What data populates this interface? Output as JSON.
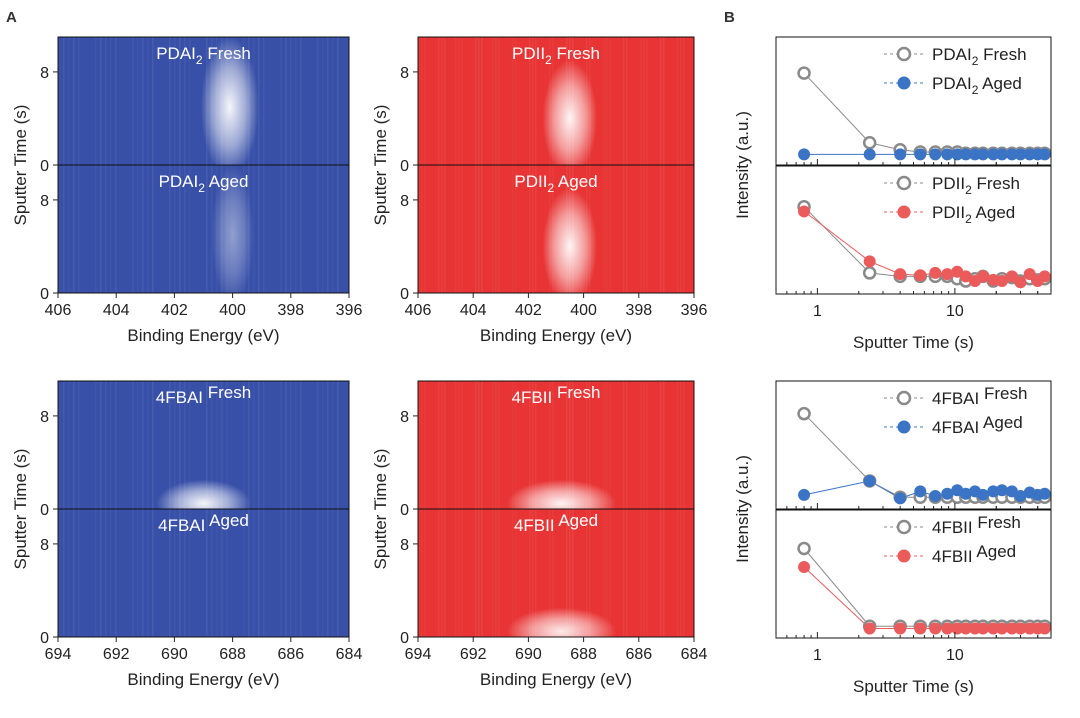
{
  "panel_letters": {
    "a": "A",
    "b": "B"
  },
  "chart_data": [
    {
      "type": "heatmap",
      "group": "PDAI2",
      "colormap": "blue",
      "xlim": [
        406,
        396
      ],
      "ylim": [
        0,
        11
      ],
      "xticks": [
        406,
        404,
        402,
        400,
        398,
        396
      ],
      "yticks": [
        0,
        8
      ],
      "xlabel": "Binding Energy (eV)",
      "ylabel": "Sputter Time (s)",
      "panels": [
        {
          "name": "PDAI",
          "sub": "2",
          "suffix": " Fresh",
          "peak": {
            "center": 400.1,
            "width": 0.55,
            "tmin": 0,
            "tmax": 10,
            "intensity": 0.95
          }
        },
        {
          "name": "PDAI",
          "sub": "2",
          "suffix": " Aged",
          "peak": {
            "center": 400.0,
            "width": 0.4,
            "tmin": 0,
            "tmax": 10,
            "intensity": 0.45
          }
        }
      ]
    },
    {
      "type": "heatmap",
      "group": "PDII2",
      "colormap": "red",
      "xlim": [
        406,
        396
      ],
      "ylim": [
        0,
        11
      ],
      "xticks": [
        406,
        404,
        402,
        400,
        398,
        396
      ],
      "yticks": [
        0,
        8
      ],
      "xlabel": "Binding Energy (eV)",
      "ylabel": "Sputter Time (s)",
      "panels": [
        {
          "name": "PDII",
          "sub": "2",
          "suffix": " Fresh",
          "peak": {
            "center": 400.5,
            "width": 0.55,
            "tmin": 0,
            "tmax": 8,
            "intensity": 0.95
          }
        },
        {
          "name": "PDII",
          "sub": "2",
          "suffix": " Aged",
          "peak": {
            "center": 400.5,
            "width": 0.55,
            "tmin": 0,
            "tmax": 8,
            "intensity": 0.95
          }
        }
      ]
    },
    {
      "type": "heatmap",
      "group": "4FBAI",
      "colormap": "blue",
      "xlim": [
        694,
        684
      ],
      "ylim": [
        0,
        11
      ],
      "xticks": [
        694,
        692,
        690,
        688,
        686,
        684
      ],
      "yticks": [
        0,
        8
      ],
      "xlabel": "Binding Energy (eV)",
      "ylabel": "Sputter Time (s)",
      "panels": [
        {
          "name": "4FBAI",
          "sub": "",
          "suffix": " Fresh",
          "peak": {
            "center": 689.0,
            "width": 0.9,
            "tmin": 0,
            "tmax": 2,
            "intensity": 0.95
          }
        },
        {
          "name": "4FBAI",
          "sub": "",
          "suffix": " Aged",
          "peak": null
        }
      ]
    },
    {
      "type": "heatmap",
      "group": "4FBII",
      "colormap": "red",
      "xlim": [
        694,
        684
      ],
      "ylim": [
        0,
        11
      ],
      "xticks": [
        694,
        692,
        690,
        688,
        686,
        684
      ],
      "yticks": [
        0,
        8
      ],
      "xlabel": "Binding Energy (eV)",
      "ylabel": "Sputter Time (s)",
      "panels": [
        {
          "name": "4FBII",
          "sub": "",
          "suffix": " Fresh",
          "peak": {
            "center": 688.8,
            "width": 1.1,
            "tmin": 0,
            "tmax": 2,
            "intensity": 0.95
          }
        },
        {
          "name": "4FBII",
          "sub": "",
          "suffix": " Aged",
          "peak": {
            "center": 688.8,
            "width": 1.1,
            "tmin": 0,
            "tmax": 2,
            "intensity": 0.9
          }
        }
      ]
    },
    {
      "type": "scatter",
      "xscale": "log",
      "xlim": [
        0.5,
        50
      ],
      "xticks": [
        1,
        10
      ],
      "xlabel": "Sputter Time (s)",
      "ylabel": "Intensity (a.u.)",
      "subplots": [
        {
          "ylim": [
            0,
            1
          ],
          "series": [
            {
              "name": "PDAI",
              "sub": "2",
              "suffix": " Fresh",
              "color": "#8a8a8a",
              "filled": false,
              "x": [
                0.8,
                2.4,
                4,
                5.6,
                7.2,
                8.8,
                10.4,
                12,
                14,
                16,
                19,
                22,
                26,
                30,
                35,
                40,
                45
              ],
              "y": [
                0.74,
                0.14,
                0.08,
                0.06,
                0.06,
                0.06,
                0.06,
                0.05,
                0.05,
                0.05,
                0.05,
                0.05,
                0.05,
                0.05,
                0.05,
                0.05,
                0.05
              ]
            },
            {
              "name": "PDAI",
              "sub": "2",
              "suffix": " Aged",
              "color": "#3b74c4",
              "filled": true,
              "x": [
                0.8,
                2.4,
                4,
                5.6,
                7.2,
                8.8,
                10.4,
                12,
                14,
                16,
                19,
                22,
                26,
                30,
                35,
                40,
                45
              ],
              "y": [
                0.04,
                0.04,
                0.04,
                0.04,
                0.04,
                0.04,
                0.04,
                0.04,
                0.04,
                0.04,
                0.04,
                0.04,
                0.04,
                0.04,
                0.04,
                0.04,
                0.04
              ]
            }
          ]
        },
        {
          "ylim": [
            0,
            1
          ],
          "series": [
            {
              "name": "PDII",
              "sub": "2",
              "suffix": " Fresh",
              "color": "#8a8a8a",
              "filled": false,
              "x": [
                0.8,
                2.4,
                4,
                5.6,
                7.2,
                8.8,
                10.4,
                12,
                14,
                16,
                19,
                22,
                26,
                30,
                35,
                40,
                45
              ],
              "y": [
                0.7,
                0.13,
                0.1,
                0.1,
                0.1,
                0.1,
                0.08,
                0.06,
                0.08,
                0.1,
                0.06,
                0.08,
                0.09,
                0.06,
                0.08,
                0.07,
                0.08
              ]
            },
            {
              "name": "PDII",
              "sub": "2",
              "suffix": " Aged",
              "color": "#ec5b5b",
              "filled": true,
              "x": [
                0.8,
                2.4,
                4,
                5.6,
                7.2,
                8.8,
                10.4,
                12,
                14,
                16,
                19,
                22,
                26,
                30,
                35,
                40,
                45
              ],
              "y": [
                0.66,
                0.23,
                0.12,
                0.11,
                0.13,
                0.12,
                0.14,
                0.1,
                0.06,
                0.1,
                0.07,
                0.06,
                0.1,
                0.05,
                0.12,
                0.06,
                0.1
              ]
            }
          ]
        },
        {
          "ylim": [
            0,
            1
          ],
          "series": [
            {
              "name": "4FBAI",
              "sub": "",
              "suffix": " Fresh",
              "color": "#8a8a8a",
              "filled": false,
              "x": [
                0.8,
                2.4,
                4,
                5.6,
                7.2,
                8.8,
                10.4,
                12,
                14,
                16,
                19,
                22,
                26,
                30,
                35,
                40,
                45
              ],
              "y": [
                0.77,
                0.19,
                0.05,
                0.05,
                0.05,
                0.05,
                0.05,
                0.05,
                0.05,
                0.05,
                0.05,
                0.05,
                0.05,
                0.05,
                0.05,
                0.05,
                0.05
              ]
            },
            {
              "name": "4FBAI",
              "sub": "",
              "suffix": " Aged",
              "color": "#3b74c4",
              "filled": true,
              "x": [
                0.8,
                2.4,
                4,
                5.6,
                7.2,
                8.8,
                10.4,
                12,
                14,
                16,
                19,
                22,
                26,
                30,
                35,
                40,
                45
              ],
              "y": [
                0.07,
                0.19,
                0.04,
                0.1,
                0.06,
                0.08,
                0.11,
                0.08,
                0.1,
                0.07,
                0.1,
                0.11,
                0.1,
                0.06,
                0.09,
                0.07,
                0.08
              ]
            }
          ]
        },
        {
          "ylim": [
            0,
            1
          ],
          "series": [
            {
              "name": "4FBII",
              "sub": "",
              "suffix": " Fresh",
              "color": "#8a8a8a",
              "filled": false,
              "x": [
                0.8,
                2.4,
                4,
                5.6,
                7.2,
                8.8,
                10.4,
                12,
                14,
                16,
                19,
                22,
                26,
                30,
                35,
                40,
                45
              ],
              "y": [
                0.72,
                0.05,
                0.05,
                0.05,
                0.05,
                0.05,
                0.05,
                0.05,
                0.05,
                0.05,
                0.05,
                0.05,
                0.05,
                0.05,
                0.05,
                0.05,
                0.05
              ]
            },
            {
              "name": "4FBII",
              "sub": "",
              "suffix": " Aged",
              "color": "#ec5b5b",
              "filled": true,
              "x": [
                0.8,
                2.4,
                4,
                5.6,
                7.2,
                8.8,
                10.4,
                12,
                14,
                16,
                19,
                22,
                26,
                30,
                35,
                40,
                45
              ],
              "y": [
                0.56,
                0.03,
                0.03,
                0.03,
                0.03,
                0.03,
                0.03,
                0.03,
                0.03,
                0.03,
                0.03,
                0.03,
                0.03,
                0.03,
                0.03,
                0.03,
                0.03
              ]
            }
          ]
        }
      ]
    }
  ]
}
